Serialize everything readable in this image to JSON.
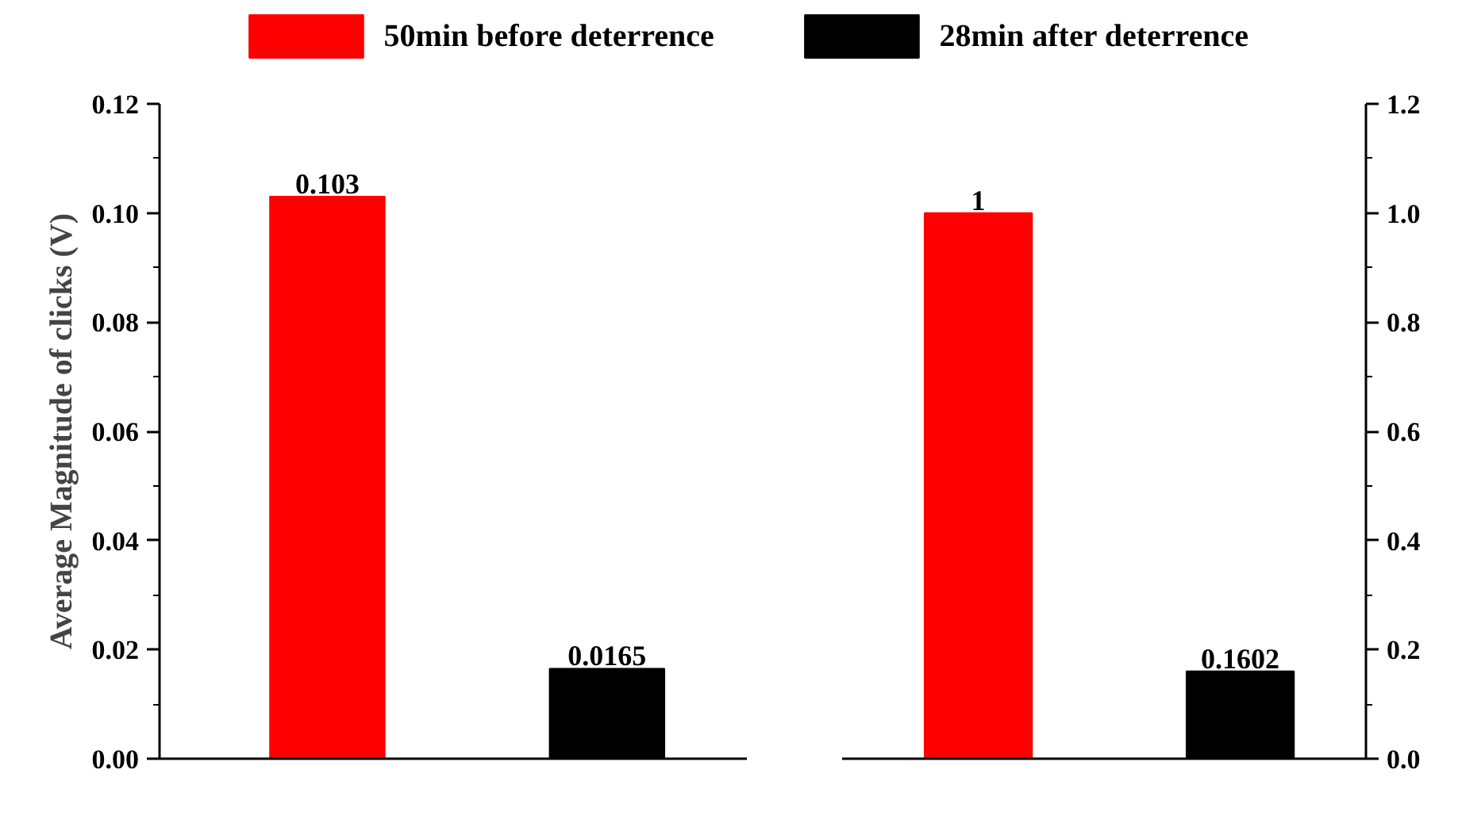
{
  "chart_data": [
    {
      "type": "bar",
      "ylabel": "Average Magnitude of clicks (V)",
      "categories": [
        null,
        null
      ],
      "legend": "top",
      "data_labels": true,
      "ylim": [
        0,
        0.12
      ],
      "yticks": [
        {
          "value": 0,
          "label": "0.00"
        },
        {
          "value": 0.02,
          "label": "0.02"
        },
        {
          "value": 0.04,
          "label": "0.04"
        },
        {
          "value": 0.06,
          "label": "0.06"
        },
        {
          "value": 0.08,
          "label": "0.08"
        },
        {
          "value": 0.1,
          "label": "0.10"
        },
        {
          "value": 0.12,
          "label": "0.12"
        }
      ],
      "series": [
        {
          "name": "50min before deterrence",
          "color": "#ff0000",
          "values": [
            0.103,
            null
          ]
        },
        {
          "name": "28min after deterrence",
          "color": "#000000",
          "values": [
            null,
            0.0165
          ]
        }
      ]
    },
    {
      "type": "bar",
      "categories": [
        null,
        null
      ],
      "data_labels": true,
      "y2lim": [
        0,
        1.2
      ],
      "y2ticks": [
        {
          "value": 0,
          "label": "0.0"
        },
        {
          "value": 0.2,
          "label": "0.2"
        },
        {
          "value": 0.4,
          "label": "0.4"
        },
        {
          "value": 0.6,
          "label": "0.6"
        },
        {
          "value": 0.8,
          "label": "0.8"
        },
        {
          "value": 1.0,
          "label": "1.0"
        },
        {
          "value": 1.2,
          "label": "1.2"
        }
      ],
      "series": [
        {
          "color": "#ff0000",
          "axis": "y2",
          "values": [
            1,
            null
          ]
        },
        {
          "color": "#000000",
          "axis": "y2",
          "values": [
            null,
            0.1602
          ]
        }
      ]
    }
  ]
}
